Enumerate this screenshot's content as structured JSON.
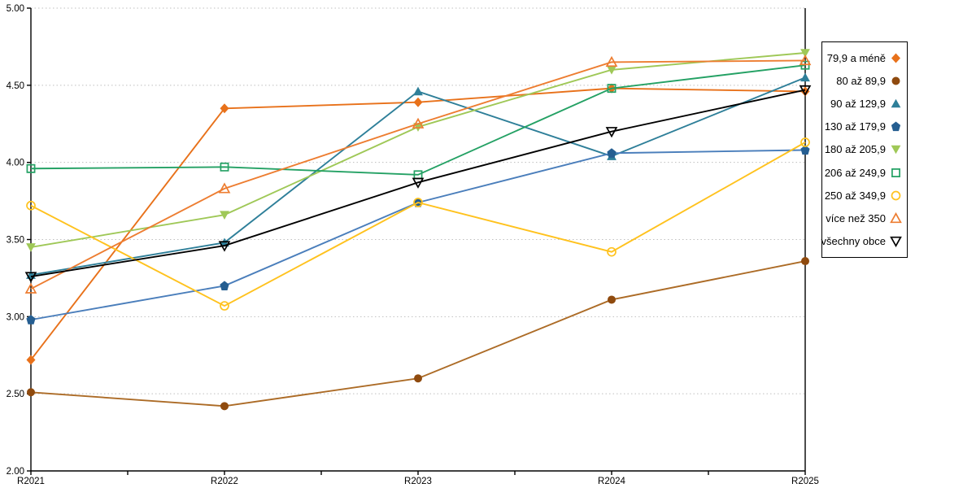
{
  "chart_data": {
    "type": "line",
    "title": "",
    "xlabel": "",
    "ylabel": "",
    "categories": [
      "R2021",
      "R2022",
      "R2023",
      "R2024",
      "R2025"
    ],
    "ylim": [
      2.0,
      5.0
    ],
    "ytick_step": 0.5,
    "ytick_labels": [
      "5.00",
      "4.50",
      "4.00",
      "3.50",
      "3.00",
      "2.50",
      "2.00"
    ],
    "grid": "horizontal-dotted",
    "legend_position": "right",
    "series": [
      {
        "name": "79,9 a méně",
        "marker": "diamond",
        "style": "filled",
        "color": "#E8711A",
        "line_color": "#E8711A",
        "values": [
          2.72,
          4.35,
          4.39,
          4.48,
          4.46
        ]
      },
      {
        "name": "80 až 89,9",
        "marker": "circle",
        "style": "filled",
        "color": "#8F4A0E",
        "line_color": "#AC6B26",
        "values": [
          2.51,
          2.42,
          2.6,
          3.11,
          3.36
        ]
      },
      {
        "name": "90 až 129,9",
        "marker": "triangle-up",
        "style": "filled",
        "color": "#2E7F99",
        "line_color": "#2E7F99",
        "values": [
          3.27,
          3.48,
          4.46,
          4.04,
          4.55
        ]
      },
      {
        "name": "130 až 179,9",
        "marker": "pentagon",
        "style": "filled",
        "color": "#255E91",
        "line_color": "#4A7EBB",
        "values": [
          2.98,
          3.2,
          3.74,
          4.06,
          4.08
        ]
      },
      {
        "name": "180 až 205,9",
        "marker": "triangle-down",
        "style": "filled",
        "color": "#9FC857",
        "line_color": "#9FC857",
        "values": [
          3.45,
          3.66,
          4.23,
          4.6,
          4.71
        ]
      },
      {
        "name": "206 až 249,9",
        "marker": "square",
        "style": "hollow",
        "color": "#24A164",
        "line_color": "#24A164",
        "values": [
          3.96,
          3.97,
          3.92,
          4.48,
          4.63
        ]
      },
      {
        "name": "250 až 349,9",
        "marker": "circle",
        "style": "hollow",
        "color": "#FFC21E",
        "line_color": "#FFC21E",
        "values": [
          3.72,
          3.07,
          3.74,
          3.42,
          4.13
        ]
      },
      {
        "name": "více než 350",
        "marker": "triangle-up",
        "style": "hollow",
        "color": "#ED7D31",
        "line_color": "#ED7D31",
        "values": [
          3.18,
          3.83,
          4.25,
          4.65,
          4.66
        ]
      },
      {
        "name": "všechny obce",
        "marker": "triangle-down",
        "style": "hollow",
        "color": "#000000",
        "line_color": "#000000",
        "values": [
          3.26,
          3.46,
          3.87,
          4.2,
          4.47
        ]
      }
    ]
  },
  "style": {
    "axis_color": "#000000",
    "gridline_color": "#BFBFBF",
    "background": "#FFFFFF"
  }
}
